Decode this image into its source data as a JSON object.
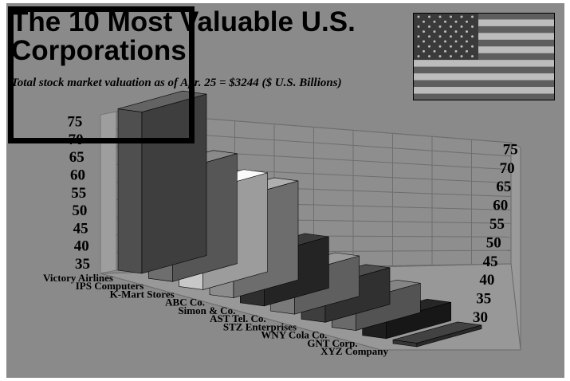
{
  "chart_data": {
    "type": "bar",
    "title": "The 10 Most Valuable U.S. Corporations",
    "subtitle": "Total stock market valuation as of Apr. 25 = $3244 ($ U.S. Billions)",
    "categories": [
      "Victory Airlines",
      "IPS Computers",
      "K-Mart Stores",
      "ABC Co.",
      "Simon & Co.",
      "AST Tel. Co.",
      "STZ Enterprises",
      "WNY Cola Co.",
      "GNT Corp.",
      "XYZ Company"
    ],
    "values": [
      74,
      60,
      57,
      57,
      44,
      41,
      40,
      38,
      35,
      31
    ],
    "colors": [
      "#4f4f4f",
      "#6e6e6e",
      "#c8c8c8",
      "#8c8c8c",
      "#2e2e2e",
      "#7a7a7a",
      "#3e3e3e",
      "#6a6a6a",
      "#1e1e1e",
      "#353535"
    ],
    "y_ticks_left": [
      "35",
      "40",
      "45",
      "50",
      "55",
      "60",
      "65",
      "70",
      "75"
    ],
    "y_ticks_right": [
      "30",
      "35",
      "40",
      "45",
      "50",
      "55",
      "60",
      "65",
      "70",
      "75"
    ],
    "ylim": [
      30,
      75
    ],
    "grid": true,
    "style": "3D"
  },
  "flag": {
    "name": "us-flag-icon"
  }
}
